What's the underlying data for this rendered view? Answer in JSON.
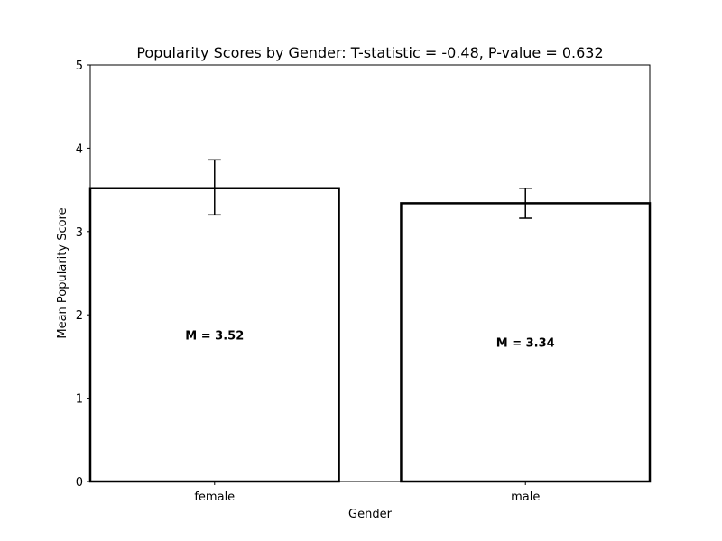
{
  "chart_data": {
    "type": "bar",
    "title": "Popularity Scores by Gender: T-statistic = -0.48, P-value = 0.632",
    "xlabel": "Gender",
    "ylabel": "Mean Popularity Score",
    "categories": [
      "female",
      "male"
    ],
    "values": [
      3.52,
      3.34
    ],
    "error_low": [
      3.2,
      3.16
    ],
    "error_high": [
      3.86,
      3.52
    ],
    "data_labels": [
      "M = 3.52",
      "M = 3.34"
    ],
    "ylim": [
      0,
      5
    ],
    "yticks": [
      0,
      1,
      2,
      3,
      4,
      5
    ],
    "grid": false,
    "legend": "none",
    "bar_fill": "#ffffff",
    "bar_edge": "#000000"
  }
}
